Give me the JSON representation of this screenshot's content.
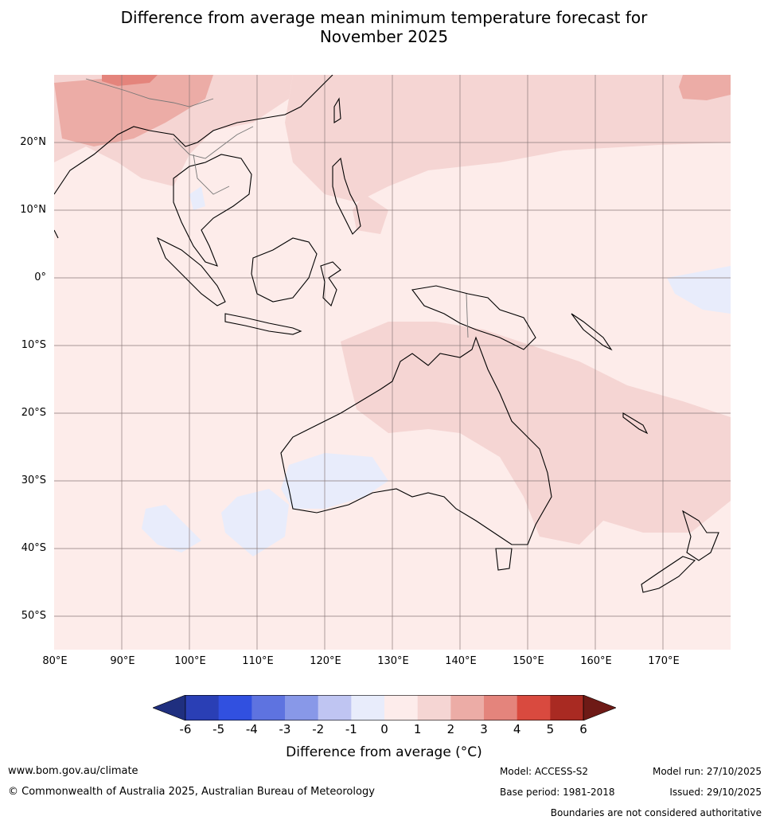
{
  "title_line1": "Difference from average mean minimum temperature forecast for",
  "title_line2": "November 2025",
  "lat_labels": [
    "20°N",
    "10°N",
    "0°",
    "10°S",
    "20°S",
    "30°S",
    "40°S",
    "50°S"
  ],
  "lon_labels": [
    "80°E",
    "90°E",
    "100°E",
    "110°E",
    "120°E",
    "130°E",
    "140°E",
    "150°E",
    "160°E",
    "170°E"
  ],
  "colorbar": {
    "ticks": [
      "-6",
      "-5",
      "-4",
      "-3",
      "-2",
      "-1",
      "0",
      "1",
      "2",
      "3",
      "4",
      "5",
      "6"
    ],
    "colors": [
      "#1f2f7f",
      "#2a3fb5",
      "#3150e0",
      "#5e73e0",
      "#8898e8",
      "#bfc5f2",
      "#e8ecfb",
      "#fdeceb",
      "#f5d5d3",
      "#ecaca6",
      "#e4847c",
      "#d94a3f",
      "#a92a22",
      "#6e1a16"
    ],
    "label": "Difference from average (°C)"
  },
  "map_colors": {
    "ocean": "#fdecea",
    "light_red": "#f5d5d3",
    "mid_red": "#ecaca6",
    "strong_red": "#e4847c",
    "light_blue": "#e8ecfb",
    "grid": "#8a7a7a",
    "coast": "#000000"
  },
  "footer": {
    "website": "www.bom.gov.au/climate",
    "copyright": "© Commonwealth of Australia 2025, Australian Bureau of Meteorology",
    "model": "Model: ACCESS-S2",
    "base_period": "Base period: 1981-2018",
    "model_run": "Model run: 27/10/2025",
    "issued": "Issued: 29/10/2025",
    "disclaimer": "Boundaries are not considered authoritative"
  }
}
